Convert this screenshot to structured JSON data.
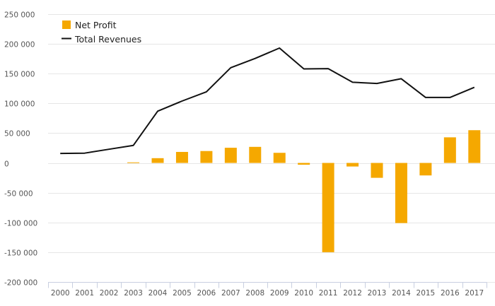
{
  "chart_data": {
    "type": "bar+line",
    "categories": [
      "2000",
      "2001",
      "2002",
      "2003",
      "2004",
      "2005",
      "2006",
      "2007",
      "2008",
      "2009",
      "2010",
      "2011",
      "2012",
      "2013",
      "2014",
      "2015",
      "2016",
      "2017"
    ],
    "series": [
      {
        "name": "Net Profit",
        "type": "bar",
        "color": "#f5a800",
        "values": [
          0,
          0,
          0,
          1000,
          8000,
          18500,
          20000,
          25500,
          27000,
          17000,
          -3000,
          -150000,
          -6000,
          -25000,
          -101000,
          -21000,
          43000,
          55000
        ]
      },
      {
        "name": "Total Revenues",
        "type": "line",
        "color": "#111111",
        "values": [
          16000,
          16500,
          23000,
          29500,
          87000,
          104000,
          119500,
          160000,
          175500,
          193000,
          158000,
          158500,
          135500,
          133500,
          141500,
          110000,
          110000,
          127000
        ]
      }
    ],
    "yticks": [
      "250 000",
      "200 000",
      "150 000",
      "100 000",
      "50 000",
      "0",
      "-50 000",
      "-100 000",
      "-150 000",
      "-200 000"
    ],
    "ytick_values": [
      250000,
      200000,
      150000,
      100000,
      50000,
      0,
      -50000,
      -100000,
      -150000,
      -200000
    ],
    "ylim": [
      -200000,
      250000
    ],
    "legend_position": "top-left",
    "grid": true
  }
}
